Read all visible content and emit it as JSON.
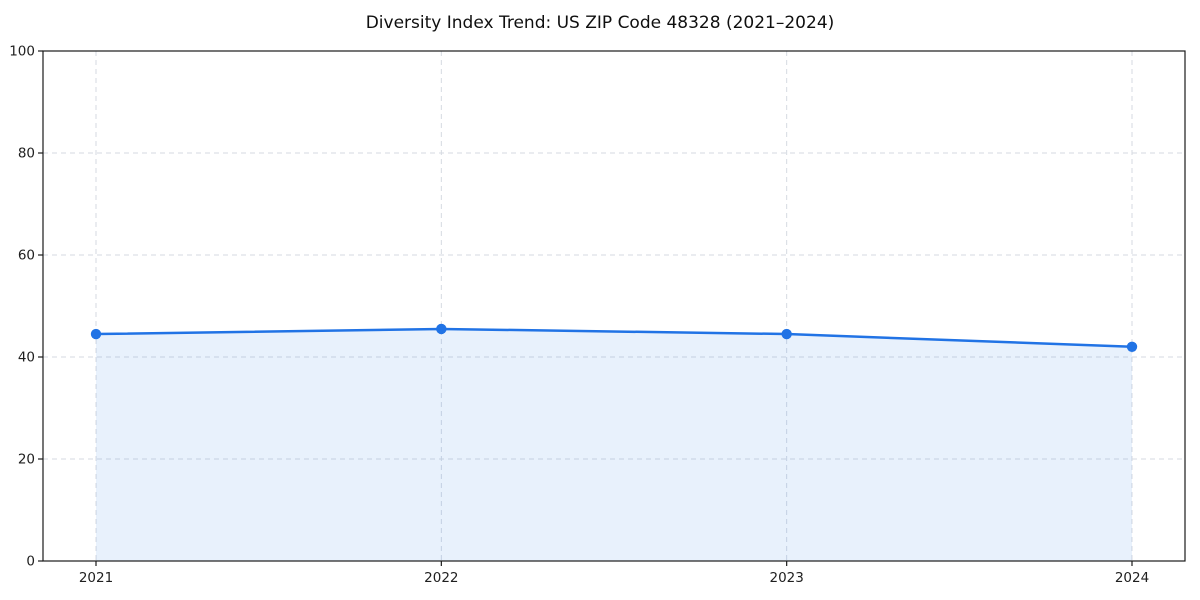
{
  "chart_data": {
    "type": "line",
    "title": "Diversity Index Trend: US ZIP Code 48328 (2021–2024)",
    "categories": [
      "2021",
      "2022",
      "2023",
      "2024"
    ],
    "series": [
      {
        "name": "Diversity Index",
        "values": [
          44.5,
          45.5,
          44.5,
          42.0
        ]
      }
    ],
    "xlabel": "",
    "ylabel": "",
    "ylim": [
      0,
      100
    ],
    "yticks": [
      0,
      20,
      40,
      60,
      80,
      100
    ],
    "grid": true,
    "grid_style": "dashed",
    "legend_position": "none",
    "colors": {
      "line": "#2173e5",
      "marker": "#2173e5",
      "fill": "#2173e5",
      "fill_opacity": 0.1,
      "gridline": "#d6dae1",
      "spine": "#1a1a1a",
      "tick_text": "#1f1f1f",
      "background": "#ffffff"
    }
  }
}
